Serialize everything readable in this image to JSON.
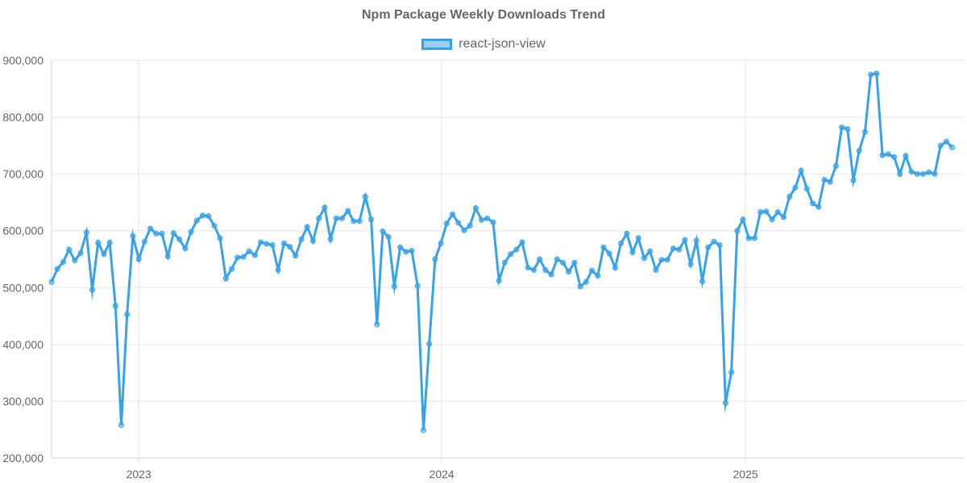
{
  "chart_data": {
    "type": "line",
    "title": "Npm Package Weekly Downloads Trend",
    "xlabel": "",
    "ylabel": "",
    "ylim": [
      200000,
      900000
    ],
    "yticks": [
      "200,000",
      "300,000",
      "400,000",
      "500,000",
      "600,000",
      "700,000",
      "800,000",
      "900,000"
    ],
    "ytick_values": [
      200000,
      300000,
      400000,
      500000,
      600000,
      700000,
      800000,
      900000
    ],
    "xticks": [
      "2023",
      "2024",
      "2025"
    ],
    "xtick_dates": [
      "2023-01-01",
      "2024-01-01",
      "2025-01-01"
    ],
    "x_start": "2022-09-18",
    "x_end": "2025-09-21",
    "grid": true,
    "legend_position": "top-center",
    "series": [
      {
        "name": "react-json-view",
        "color": "#36a2eb",
        "fill": "rgba(54,162,235,0.5)",
        "points": [
          [
            "2022-09-18",
            510000
          ],
          [
            "2022-09-25",
            533000
          ],
          [
            "2022-10-02",
            545000
          ],
          [
            "2022-10-09",
            567000
          ],
          [
            "2022-10-16",
            548000
          ],
          [
            "2022-10-23",
            561000
          ],
          [
            "2022-10-30",
            597000
          ],
          [
            "2022-11-06",
            496000
          ],
          [
            "2022-11-13",
            579000
          ],
          [
            "2022-11-20",
            559000
          ],
          [
            "2022-11-27",
            579000
          ],
          [
            "2022-12-04",
            468000
          ],
          [
            "2022-12-11",
            258000
          ],
          [
            "2022-12-18",
            453000
          ],
          [
            "2022-12-25",
            591000
          ],
          [
            "2023-01-01",
            550000
          ],
          [
            "2023-01-08",
            581000
          ],
          [
            "2023-01-15",
            604000
          ],
          [
            "2023-01-22",
            595000
          ],
          [
            "2023-01-29",
            595000
          ],
          [
            "2023-02-05",
            555000
          ],
          [
            "2023-02-12",
            596000
          ],
          [
            "2023-02-19",
            585000
          ],
          [
            "2023-02-26",
            569000
          ],
          [
            "2023-03-05",
            598000
          ],
          [
            "2023-03-12",
            618000
          ],
          [
            "2023-03-19",
            627000
          ],
          [
            "2023-03-26",
            626000
          ],
          [
            "2023-04-02",
            609000
          ],
          [
            "2023-04-09",
            587000
          ],
          [
            "2023-04-16",
            516000
          ],
          [
            "2023-04-23",
            533000
          ],
          [
            "2023-04-30",
            553000
          ],
          [
            "2023-05-07",
            554000
          ],
          [
            "2023-05-14",
            564000
          ],
          [
            "2023-05-21",
            557000
          ],
          [
            "2023-05-28",
            580000
          ],
          [
            "2023-06-04",
            577000
          ],
          [
            "2023-06-11",
            575000
          ],
          [
            "2023-06-18",
            531000
          ],
          [
            "2023-06-25",
            578000
          ],
          [
            "2023-07-02",
            572000
          ],
          [
            "2023-07-09",
            556000
          ],
          [
            "2023-07-16",
            585000
          ],
          [
            "2023-07-23",
            607000
          ],
          [
            "2023-07-30",
            582000
          ],
          [
            "2023-08-06",
            622000
          ],
          [
            "2023-08-13",
            641000
          ],
          [
            "2023-08-20",
            585000
          ],
          [
            "2023-08-27",
            622000
          ],
          [
            "2023-09-03",
            622000
          ],
          [
            "2023-09-10",
            635000
          ],
          [
            "2023-09-17",
            617000
          ],
          [
            "2023-09-24",
            617000
          ],
          [
            "2023-10-01",
            660000
          ],
          [
            "2023-10-08",
            620000
          ],
          [
            "2023-10-15",
            435000
          ],
          [
            "2023-10-22",
            599000
          ],
          [
            "2023-10-29",
            589000
          ],
          [
            "2023-11-05",
            502000
          ],
          [
            "2023-11-12",
            571000
          ],
          [
            "2023-11-19",
            563000
          ],
          [
            "2023-11-26",
            565000
          ],
          [
            "2023-12-03",
            503000
          ],
          [
            "2023-12-10",
            249000
          ],
          [
            "2023-12-17",
            401000
          ],
          [
            "2023-12-24",
            550000
          ],
          [
            "2023-12-31",
            578000
          ],
          [
            "2024-01-07",
            613000
          ],
          [
            "2024-01-14",
            629000
          ],
          [
            "2024-01-21",
            614000
          ],
          [
            "2024-01-28",
            601000
          ],
          [
            "2024-02-04",
            609000
          ],
          [
            "2024-02-11",
            640000
          ],
          [
            "2024-02-18",
            619000
          ],
          [
            "2024-02-25",
            622000
          ],
          [
            "2024-03-03",
            615000
          ],
          [
            "2024-03-10",
            512000
          ],
          [
            "2024-03-17",
            544000
          ],
          [
            "2024-03-24",
            559000
          ],
          [
            "2024-03-31",
            567000
          ],
          [
            "2024-04-07",
            580000
          ],
          [
            "2024-04-14",
            535000
          ],
          [
            "2024-04-21",
            531000
          ],
          [
            "2024-04-28",
            550000
          ],
          [
            "2024-05-05",
            531000
          ],
          [
            "2024-05-12",
            523000
          ],
          [
            "2024-05-19",
            550000
          ],
          [
            "2024-05-26",
            544000
          ],
          [
            "2024-06-02",
            528000
          ],
          [
            "2024-06-09",
            544000
          ],
          [
            "2024-06-16",
            502000
          ],
          [
            "2024-06-23",
            510000
          ],
          [
            "2024-06-30",
            530000
          ],
          [
            "2024-07-07",
            521000
          ],
          [
            "2024-07-14",
            571000
          ],
          [
            "2024-07-21",
            560000
          ],
          [
            "2024-07-28",
            535000
          ],
          [
            "2024-08-04",
            578000
          ],
          [
            "2024-08-11",
            595000
          ],
          [
            "2024-08-18",
            562000
          ],
          [
            "2024-08-25",
            587000
          ],
          [
            "2024-09-01",
            552000
          ],
          [
            "2024-09-08",
            564000
          ],
          [
            "2024-09-15",
            531000
          ],
          [
            "2024-09-22",
            549000
          ],
          [
            "2024-09-29",
            549000
          ],
          [
            "2024-10-06",
            569000
          ],
          [
            "2024-10-13",
            567000
          ],
          [
            "2024-10-20",
            584000
          ],
          [
            "2024-10-27",
            541000
          ],
          [
            "2024-11-03",
            583000
          ],
          [
            "2024-11-10",
            511000
          ],
          [
            "2024-11-17",
            571000
          ],
          [
            "2024-11-24",
            581000
          ],
          [
            "2024-12-01",
            575000
          ],
          [
            "2024-12-08",
            297000
          ],
          [
            "2024-12-15",
            351000
          ],
          [
            "2024-12-22",
            600000
          ],
          [
            "2024-12-29",
            620000
          ],
          [
            "2025-01-05",
            587000
          ],
          [
            "2025-01-12",
            587000
          ],
          [
            "2025-01-19",
            633000
          ],
          [
            "2025-01-26",
            634000
          ],
          [
            "2025-02-02",
            620000
          ],
          [
            "2025-02-09",
            633000
          ],
          [
            "2025-02-16",
            624000
          ],
          [
            "2025-02-23",
            660000
          ],
          [
            "2025-03-02",
            676000
          ],
          [
            "2025-03-09",
            706000
          ],
          [
            "2025-03-16",
            674000
          ],
          [
            "2025-03-23",
            648000
          ],
          [
            "2025-03-30",
            642000
          ],
          [
            "2025-04-06",
            690000
          ],
          [
            "2025-04-13",
            686000
          ],
          [
            "2025-04-20",
            714000
          ],
          [
            "2025-04-27",
            782000
          ],
          [
            "2025-05-04",
            779000
          ],
          [
            "2025-05-11",
            689000
          ],
          [
            "2025-05-18",
            741000
          ],
          [
            "2025-05-25",
            774000
          ],
          [
            "2025-06-01",
            875000
          ],
          [
            "2025-06-08",
            877000
          ],
          [
            "2025-06-15",
            733000
          ],
          [
            "2025-06-22",
            735000
          ],
          [
            "2025-06-29",
            730000
          ],
          [
            "2025-07-06",
            700000
          ],
          [
            "2025-07-13",
            732000
          ],
          [
            "2025-07-20",
            704000
          ],
          [
            "2025-07-27",
            700000
          ],
          [
            "2025-08-03",
            700000
          ],
          [
            "2025-08-10",
            703000
          ],
          [
            "2025-08-17",
            700000
          ],
          [
            "2025-08-24",
            750000
          ],
          [
            "2025-08-31",
            757000
          ],
          [
            "2025-09-07",
            747000
          ]
        ]
      }
    ]
  }
}
